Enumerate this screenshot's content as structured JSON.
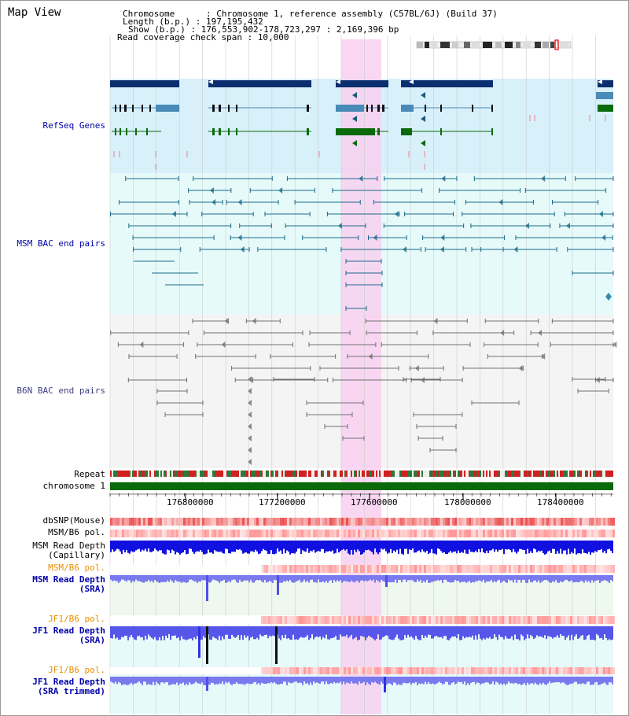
{
  "title": "Map View",
  "header": {
    "chromosome": "Chromosome      : Chromosome 1, reference assembly (C57BL/6J) (Build 37)",
    "length": "Length (b.p.) : 197,195,432",
    "show": "Show (b.p.) : 176,553,902-178,723,297 : 2,169,396 bp",
    "coverage": "Read coverage check span : 10,000"
  },
  "tracks": {
    "refseq": "RefSeq Genes",
    "msm_bac": "MSM BAC end pairs",
    "b6n_bac": "B6N BAC end pairs",
    "repeat": "Repeat",
    "chromosome": "chromosome 1",
    "dbsnp": "dbSNP(Mouse)",
    "msm_b6_pol_1": "MSM/B6 pol.",
    "msm_read_depth_cap_1": "MSM Read Depth",
    "msm_read_depth_cap_2": "(Capillary)",
    "msm_b6_pol_2": "MSM/B6 pol.",
    "msm_read_depth_sra_1": "MSM Read Depth",
    "msm_read_depth_sra_2": "(SRA)",
    "jf1_b6_pol_1": "JF1/B6 pol.",
    "jf1_read_depth_1": "JF1 Read Depth",
    "jf1_read_depth_2": "(SRA)",
    "jf1_b6_pol_2": "JF1/B6 pol.",
    "jf1_read_depth_trim_1": "JF1 Read Depth",
    "jf1_read_depth_trim_2": "(SRA trimmed)"
  },
  "axis_ticks": [
    "176800000",
    "177200000",
    "177600000",
    "178000000",
    "178400000"
  ],
  "colors": {
    "refseq_bg": "#d8f0fa",
    "bac_bg": "#e6fafa",
    "b6n_bg": "#f4f4f4",
    "highlight": "#f8d0f0",
    "gene_dark": "#0a2e6e",
    "gene_mid": "#4a8ab8",
    "gene_green": "#0a6a0a",
    "chromosome": "#0a6a0a",
    "msm_pair": "#1a6a8a",
    "b6n_pair": "#707070",
    "depth_blue": "#1010e0",
    "depth_light": "#7a7aee",
    "snp_red": "#f05050"
  }
}
